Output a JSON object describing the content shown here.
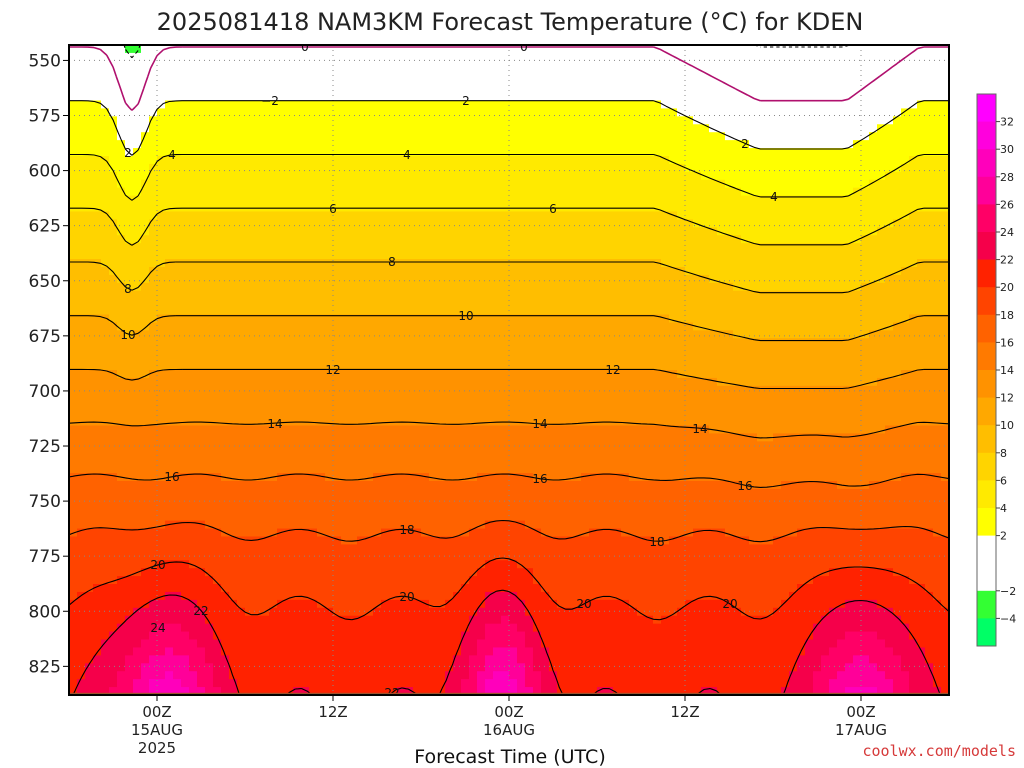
{
  "chart_data": {
    "type": "heatmap",
    "title": "2025081418 NAM3KM Forecast Temperature (°C) for KDEN",
    "xlabel": "Forecast Time (UTC)",
    "ylabel": "",
    "y_ticks": [
      "550",
      "575",
      "600",
      "625",
      "650",
      "675",
      "700",
      "725",
      "750",
      "775",
      "800",
      "825"
    ],
    "y_ticks_numeric": [
      550,
      575,
      600,
      625,
      650,
      675,
      700,
      725,
      750,
      775,
      800,
      825
    ],
    "ylim": [
      838,
      543
    ],
    "x_ticks": [
      {
        "hour": 6,
        "line1": "00Z",
        "line2": "15AUG",
        "line3": "2025"
      },
      {
        "hour": 18,
        "line1": "12Z",
        "line2": "",
        "line3": ""
      },
      {
        "hour": 30,
        "line1": "00Z",
        "line2": "16AUG",
        "line3": ""
      },
      {
        "hour": 42,
        "line1": "12Z",
        "line2": "",
        "line3": ""
      },
      {
        "hour": 54,
        "line1": "00Z",
        "line2": "17AUG",
        "line3": ""
      }
    ],
    "xlim": [
      0,
      60
    ],
    "grid": true,
    "surface_pressure_hPa": 837,
    "colorbar_ticks": [
      "32",
      "30",
      "28",
      "26",
      "24",
      "22",
      "20",
      "18",
      "16",
      "14",
      "12",
      "10",
      "8",
      "6",
      "4",
      "2",
      "−2",
      "−4"
    ],
    "colorbar_levels": [
      -6,
      -4,
      -2,
      0,
      2,
      4,
      6,
      8,
      10,
      12,
      14,
      16,
      18,
      20,
      22,
      24,
      26,
      28,
      30,
      32,
      34
    ],
    "colorbar_colors": [
      "#00ff66",
      "#33ff33",
      "#ffffff",
      "#ffffff",
      "#ffff00",
      "#ffea00",
      "#ffd400",
      "#ffbe00",
      "#ffa800",
      "#ff9200",
      "#ff7a00",
      "#ff6200",
      "#ff4400",
      "#ff2200",
      "#f5004a",
      "#ff0066",
      "#ff0099",
      "#ff00bb",
      "#ff00dd",
      "#ff00ff"
    ],
    "isotherm_levels": [
      -2,
      0,
      2,
      4,
      6,
      8,
      10,
      12,
      14,
      16,
      18,
      20,
      22
    ],
    "contour_labels": [
      "−2",
      "0",
      "0",
      "2",
      "2",
      "4",
      "4",
      "6",
      "6",
      "8",
      "8",
      "10",
      "10",
      "12",
      "12",
      "14",
      "14",
      "14",
      "16",
      "16",
      "16",
      "18",
      "18",
      "20",
      "20",
      "20",
      "20",
      "22",
      "22",
      "22",
      "24",
      "24",
      "2",
      "4"
    ],
    "stations": {
      "name": "KDEN"
    }
  },
  "credit": "coolwx.com/models",
  "colors": {
    "surface": "#a0522d",
    "zero_line": "#b0106e",
    "grid": "#888888"
  }
}
